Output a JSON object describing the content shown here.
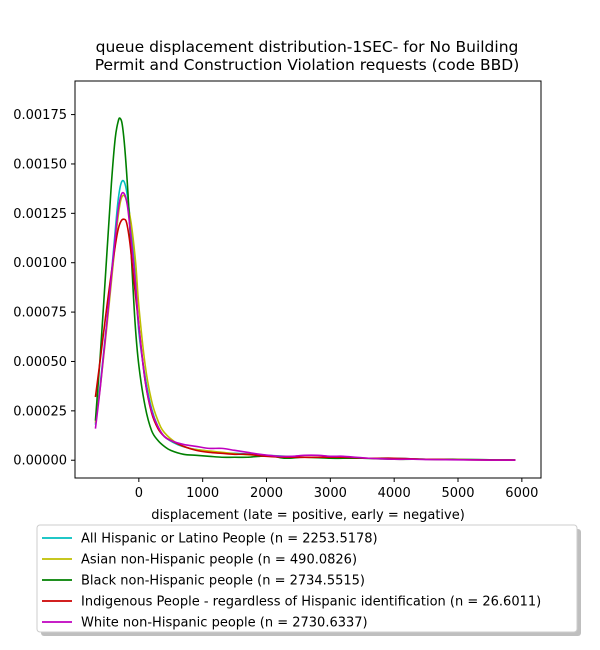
{
  "chart_data": {
    "type": "line",
    "title": "queue displacement distribution-1SEC-  for No Building Permit and Construction Violation  requests (code BBD)",
    "title_lines": [
      "queue displacement distribution-1SEC-  for No Building",
      "Permit and Construction Violation  requests (code BBD)"
    ],
    "xlabel": "displacement (late = positive, early = negative)",
    "ylabel": "",
    "xlim": [
      -1000,
      6300
    ],
    "ylim": [
      -9e-05,
      0.00192
    ],
    "x_ticks": [
      0,
      1000,
      2000,
      3000,
      4000,
      5000,
      6000
    ],
    "x_tick_labels": [
      "0",
      "1000",
      "2000",
      "3000",
      "4000",
      "5000",
      "6000"
    ],
    "y_ticks": [
      0,
      0.00025,
      0.0005,
      0.00075,
      0.001,
      0.00125,
      0.0015,
      0.00175
    ],
    "y_tick_labels": [
      "0.00000",
      "0.00025",
      "0.00050",
      "0.00075",
      "0.00100",
      "0.00125",
      "0.00150",
      "0.00175"
    ],
    "grid": false,
    "legend_placement": "below",
    "series": [
      {
        "name": "All Hispanic or Latino People (n = 2253.5178)",
        "color": "#00bfbf",
        "x": [
          -680,
          -600,
          -500,
          -400,
          -330,
          -280,
          -230,
          -180,
          -130,
          -60,
          0,
          100,
          200,
          300,
          400,
          600,
          800,
          1000,
          1200,
          1500,
          1800,
          2000,
          2300,
          2600,
          3000,
          3200,
          3500,
          4000,
          4500,
          5000,
          5500,
          5900
        ],
        "y": [
          0.00018,
          0.0004,
          0.0007,
          0.00105,
          0.0013,
          0.0014,
          0.00141,
          0.00134,
          0.0012,
          0.00095,
          0.00065,
          0.00042,
          0.00026,
          0.00017,
          0.00012,
          8e-05,
          6e-05,
          5e-05,
          4e-05,
          3.5e-05,
          3e-05,
          2.5e-05,
          2e-05,
          1.5e-05,
          1.5e-05,
          1.5e-05,
          1e-05,
          1e-05,
          5e-06,
          5e-06,
          2e-06,
          1e-06
        ]
      },
      {
        "name": "Asian non-Hispanic people (n = 490.0826)",
        "color": "#bfbf00",
        "x": [
          -680,
          -600,
          -500,
          -400,
          -330,
          -280,
          -230,
          -180,
          -120,
          -50,
          0,
          100,
          200,
          300,
          400,
          600,
          800,
          1000,
          1300,
          1600,
          1900,
          2200,
          2600,
          3000,
          3500,
          4000,
          4500,
          5000,
          5500,
          5900
        ],
        "y": [
          0.00019,
          0.00038,
          0.00068,
          0.001,
          0.00122,
          0.00132,
          0.00134,
          0.0013,
          0.0012,
          0.001,
          0.00078,
          0.00048,
          0.0003,
          0.0002,
          0.00014,
          8.5e-05,
          6e-05,
          5e-05,
          4e-05,
          3e-05,
          2.5e-05,
          2e-05,
          1.5e-05,
          1.2e-05,
          1e-05,
          8e-06,
          5e-06,
          4e-06,
          2e-06,
          1e-06
        ]
      },
      {
        "name": "Black non-Hispanic people (n = 2734.5515)",
        "color": "#008000",
        "x": [
          -680,
          -600,
          -500,
          -430,
          -370,
          -320,
          -290,
          -260,
          -220,
          -170,
          -120,
          -60,
          0,
          100,
          200,
          300,
          400,
          500,
          700,
          900,
          1100,
          1300,
          1500,
          1700,
          1900,
          2100,
          2300,
          2600,
          3000,
          3200,
          3500,
          4000,
          4500,
          5000,
          5500,
          5900
        ],
        "y": [
          0.0002,
          0.00055,
          0.00105,
          0.0014,
          0.00163,
          0.00172,
          0.00173,
          0.0017,
          0.00158,
          0.00135,
          0.00105,
          0.0007,
          0.00048,
          0.00027,
          0.00015,
          0.0001,
          7e-05,
          5e-05,
          3e-05,
          2.5e-05,
          2e-05,
          1.5e-05,
          1.5e-05,
          1.5e-05,
          2e-05,
          2e-05,
          1e-05,
          1.5e-05,
          1e-05,
          1e-05,
          1e-05,
          5e-06,
          5e-06,
          3e-06,
          2e-06,
          1e-06
        ]
      },
      {
        "name": "Indigenous People - regardless of Hispanic identification (n = 26.6011)",
        "color": "#cc0000",
        "x": [
          -680,
          -600,
          -500,
          -400,
          -330,
          -280,
          -230,
          -190,
          -140,
          -80,
          0,
          100,
          200,
          300,
          400,
          500,
          700,
          900,
          1100,
          1300,
          1500,
          1700,
          2000,
          2400,
          2800,
          3200,
          3600,
          4000,
          4500,
          5000,
          5500,
          5900
        ],
        "y": [
          0.00032,
          0.00052,
          0.00078,
          0.00102,
          0.00116,
          0.00121,
          0.00122,
          0.0012,
          0.0011,
          0.00092,
          0.00068,
          0.0004,
          0.00024,
          0.00016,
          0.00012,
          0.0001,
          7e-05,
          5e-05,
          4e-05,
          3.5e-05,
          3e-05,
          3e-05,
          2e-05,
          1.5e-05,
          1.5e-05,
          1.5e-05,
          1e-05,
          1e-05,
          5e-06,
          3e-06,
          1e-06,
          1e-06
        ]
      },
      {
        "name": "White non-Hispanic people (n = 2730.6337)",
        "color": "#bf00bf",
        "x": [
          -680,
          -600,
          -500,
          -400,
          -330,
          -280,
          -230,
          -180,
          -130,
          -60,
          0,
          100,
          200,
          300,
          400,
          500,
          700,
          900,
          1100,
          1300,
          1500,
          1700,
          1900,
          2200,
          2400,
          2600,
          2800,
          3000,
          3200,
          3400,
          3600,
          4000,
          4300,
          4600,
          5000,
          5500,
          5900
        ],
        "y": [
          0.00016,
          0.00038,
          0.0007,
          0.00103,
          0.00125,
          0.00134,
          0.00135,
          0.00129,
          0.00115,
          0.00092,
          0.00068,
          0.0004,
          0.00025,
          0.00017,
          0.00012,
          0.0001,
          8e-05,
          7e-05,
          6e-05,
          6e-05,
          5e-05,
          4e-05,
          3e-05,
          2e-05,
          2e-05,
          2.5e-05,
          2.5e-05,
          2e-05,
          2e-05,
          1.5e-05,
          1e-05,
          5e-06,
          5e-06,
          3e-06,
          2e-06,
          1e-06,
          1e-06
        ]
      }
    ]
  }
}
